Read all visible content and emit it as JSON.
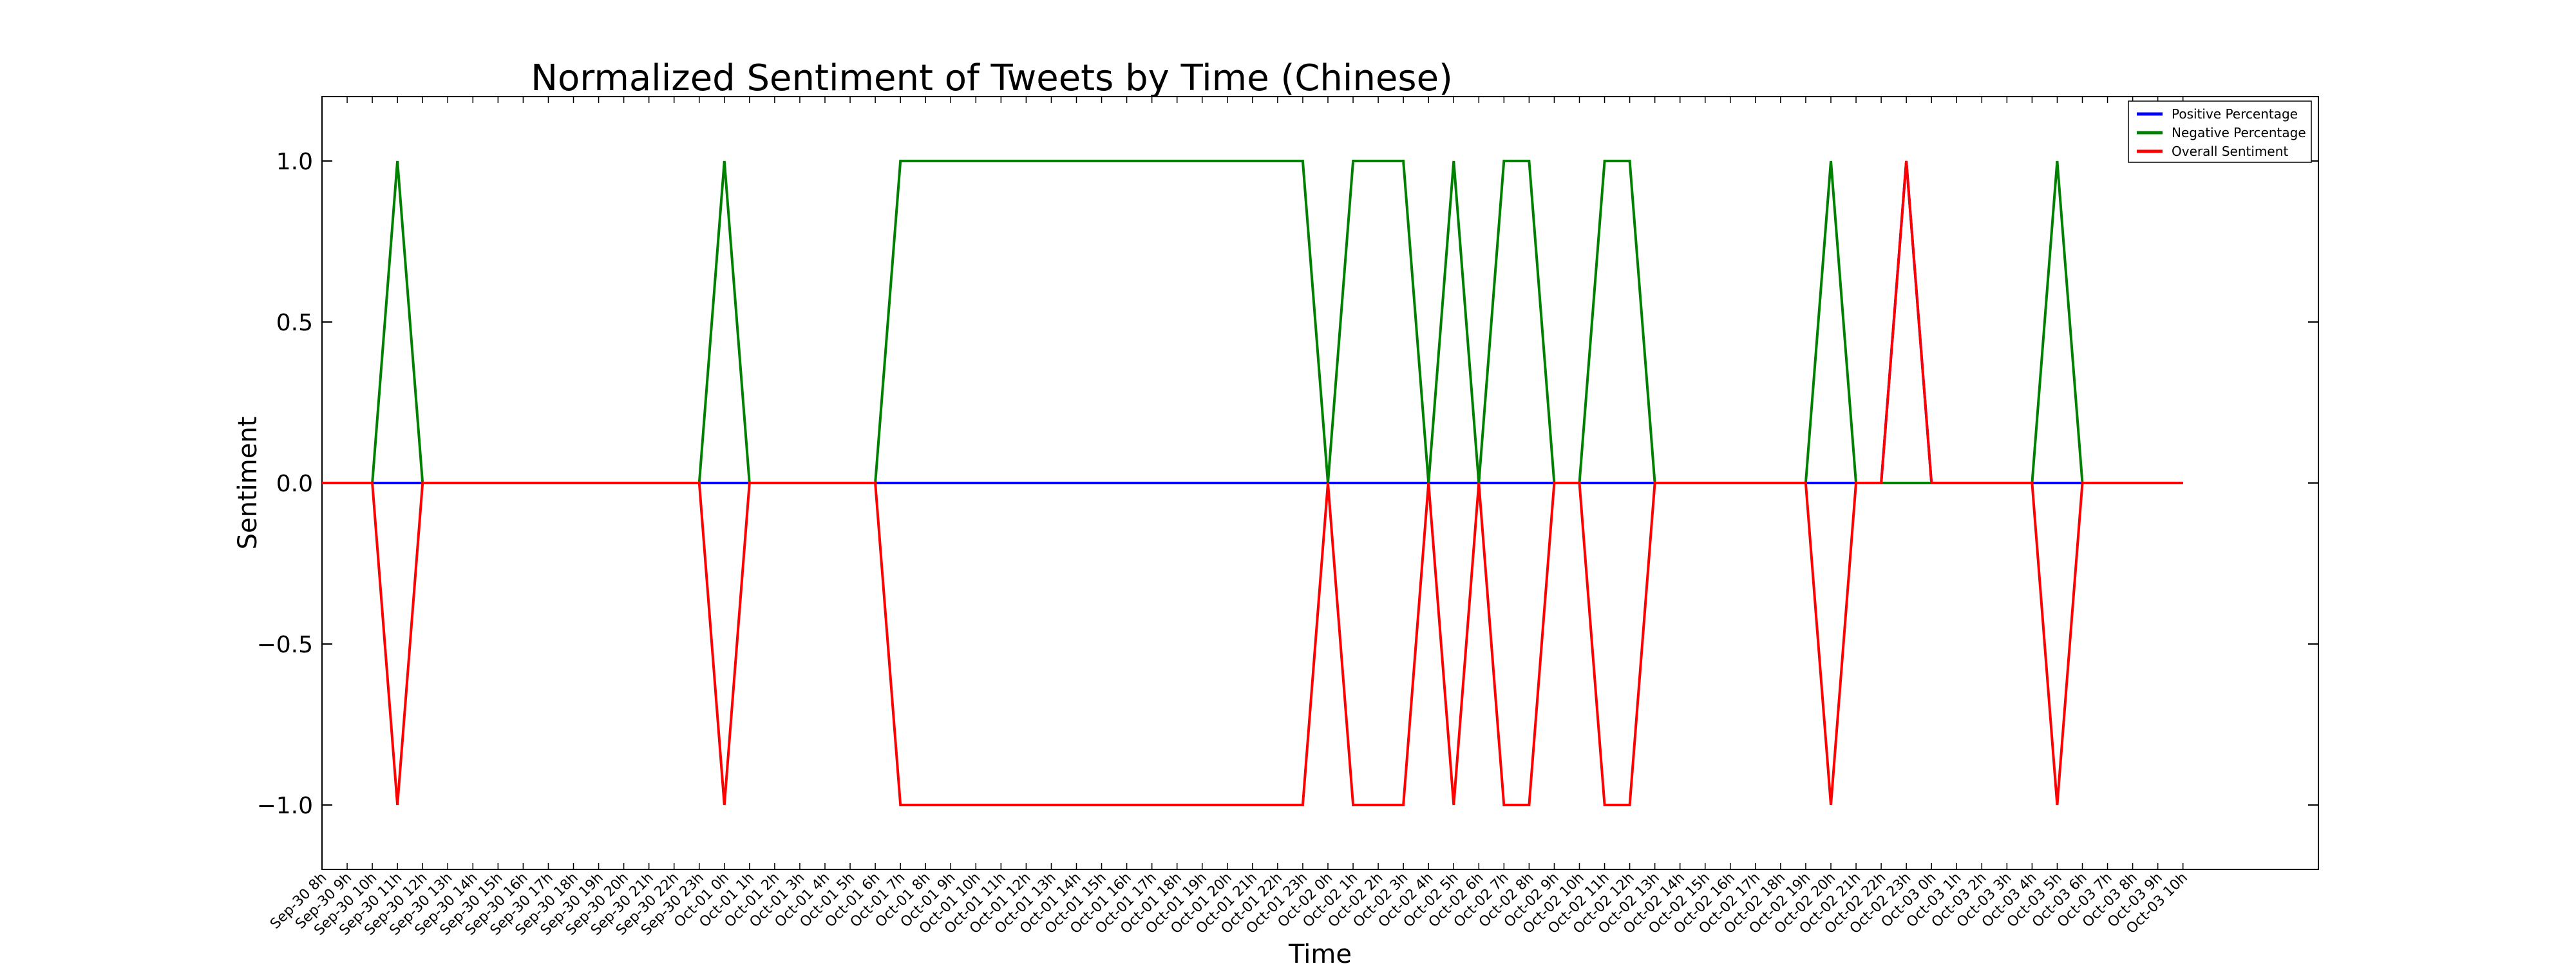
{
  "chart_data": {
    "type": "line",
    "title": "Normalized Sentiment of Tweets by Time (Chinese)",
    "xlabel": "Time",
    "ylabel": "Sentiment",
    "ylim": [
      -1.2,
      1.2
    ],
    "yticks": [
      -1.0,
      -0.5,
      0.0,
      0.5,
      1.0
    ],
    "ytick_labels": [
      "−1.0",
      "−0.5",
      "0.0",
      "0.5",
      "1.0"
    ],
    "x": [
      "Sep-30 8h",
      "Sep-30 9h",
      "Sep-30 10h",
      "Sep-30 11h",
      "Sep-30 12h",
      "Sep-30 13h",
      "Sep-30 14h",
      "Sep-30 15h",
      "Sep-30 16h",
      "Sep-30 17h",
      "Sep-30 18h",
      "Sep-30 19h",
      "Sep-30 20h",
      "Sep-30 21h",
      "Sep-30 22h",
      "Sep-30 23h",
      "Oct-01 0h",
      "Oct-01 1h",
      "Oct-01 2h",
      "Oct-01 3h",
      "Oct-01 4h",
      "Oct-01 5h",
      "Oct-01 6h",
      "Oct-01 7h",
      "Oct-01 8h",
      "Oct-01 9h",
      "Oct-01 10h",
      "Oct-01 11h",
      "Oct-01 12h",
      "Oct-01 13h",
      "Oct-01 14h",
      "Oct-01 15h",
      "Oct-01 16h",
      "Oct-01 17h",
      "Oct-01 18h",
      "Oct-01 19h",
      "Oct-01 20h",
      "Oct-01 21h",
      "Oct-01 22h",
      "Oct-01 23h",
      "Oct-02 0h",
      "Oct-02 1h",
      "Oct-02 2h",
      "Oct-02 3h",
      "Oct-02 4h",
      "Oct-02 5h",
      "Oct-02 6h",
      "Oct-02 7h",
      "Oct-02 8h",
      "Oct-02 9h",
      "Oct-02 10h",
      "Oct-02 11h",
      "Oct-02 12h",
      "Oct-02 13h",
      "Oct-02 14h",
      "Oct-02 15h",
      "Oct-02 16h",
      "Oct-02 17h",
      "Oct-02 18h",
      "Oct-02 19h",
      "Oct-02 20h",
      "Oct-02 21h",
      "Oct-02 22h",
      "Oct-02 23h",
      "Oct-03 0h",
      "Oct-03 1h",
      "Oct-03 2h",
      "Oct-03 3h",
      "Oct-03 4h",
      "Oct-03 5h",
      "Oct-03 6h",
      "Oct-03 7h",
      "Oct-03 8h",
      "Oct-03 9h",
      "Oct-03 10h"
    ],
    "series": [
      {
        "name": "Positive Percentage",
        "color": "#0000ff",
        "values": [
          0,
          0,
          0,
          0,
          0,
          0,
          0,
          0,
          0,
          0,
          0,
          0,
          0,
          0,
          0,
          0,
          0,
          0,
          0,
          0,
          0,
          0,
          0,
          0,
          0,
          0,
          0,
          0,
          0,
          0,
          0,
          0,
          0,
          0,
          0,
          0,
          0,
          0,
          0,
          0,
          0,
          0,
          0,
          0,
          0,
          0,
          0,
          0,
          0,
          0,
          0,
          0,
          0,
          0,
          0,
          0,
          0,
          0,
          0,
          0,
          0,
          0,
          0,
          1,
          0,
          0,
          0,
          0,
          0,
          0,
          0,
          0,
          0,
          0,
          0
        ]
      },
      {
        "name": "Negative Percentage",
        "color": "#008000",
        "values": [
          0,
          0,
          0,
          1,
          0,
          0,
          0,
          0,
          0,
          0,
          0,
          0,
          0,
          0,
          0,
          0,
          1,
          0,
          0,
          0,
          0,
          0,
          0,
          1,
          1,
          1,
          1,
          1,
          1,
          1,
          1,
          1,
          1,
          1,
          1,
          1,
          1,
          1,
          1,
          1,
          0,
          1,
          1,
          1,
          0,
          1,
          0,
          1,
          1,
          0,
          0,
          1,
          1,
          0,
          0,
          0,
          0,
          0,
          0,
          0,
          1,
          0,
          0,
          0,
          0,
          0,
          0,
          0,
          0,
          1,
          0,
          0,
          0,
          0,
          0
        ]
      },
      {
        "name": "Overall Sentiment",
        "color": "#ff0000",
        "values": [
          0,
          0,
          0,
          -1,
          0,
          0,
          0,
          0,
          0,
          0,
          0,
          0,
          0,
          0,
          0,
          0,
          -1,
          0,
          0,
          0,
          0,
          0,
          0,
          -1,
          -1,
          -1,
          -1,
          -1,
          -1,
          -1,
          -1,
          -1,
          -1,
          -1,
          -1,
          -1,
          -1,
          -1,
          -1,
          -1,
          0,
          -1,
          -1,
          -1,
          0,
          -1,
          0,
          -1,
          -1,
          0,
          0,
          -1,
          -1,
          0,
          0,
          0,
          0,
          0,
          0,
          0,
          -1,
          0,
          0,
          1,
          0,
          0,
          0,
          0,
          0,
          -1,
          0,
          0,
          0,
          0,
          0
        ]
      }
    ],
    "legend": "top-right",
    "grid": false
  }
}
